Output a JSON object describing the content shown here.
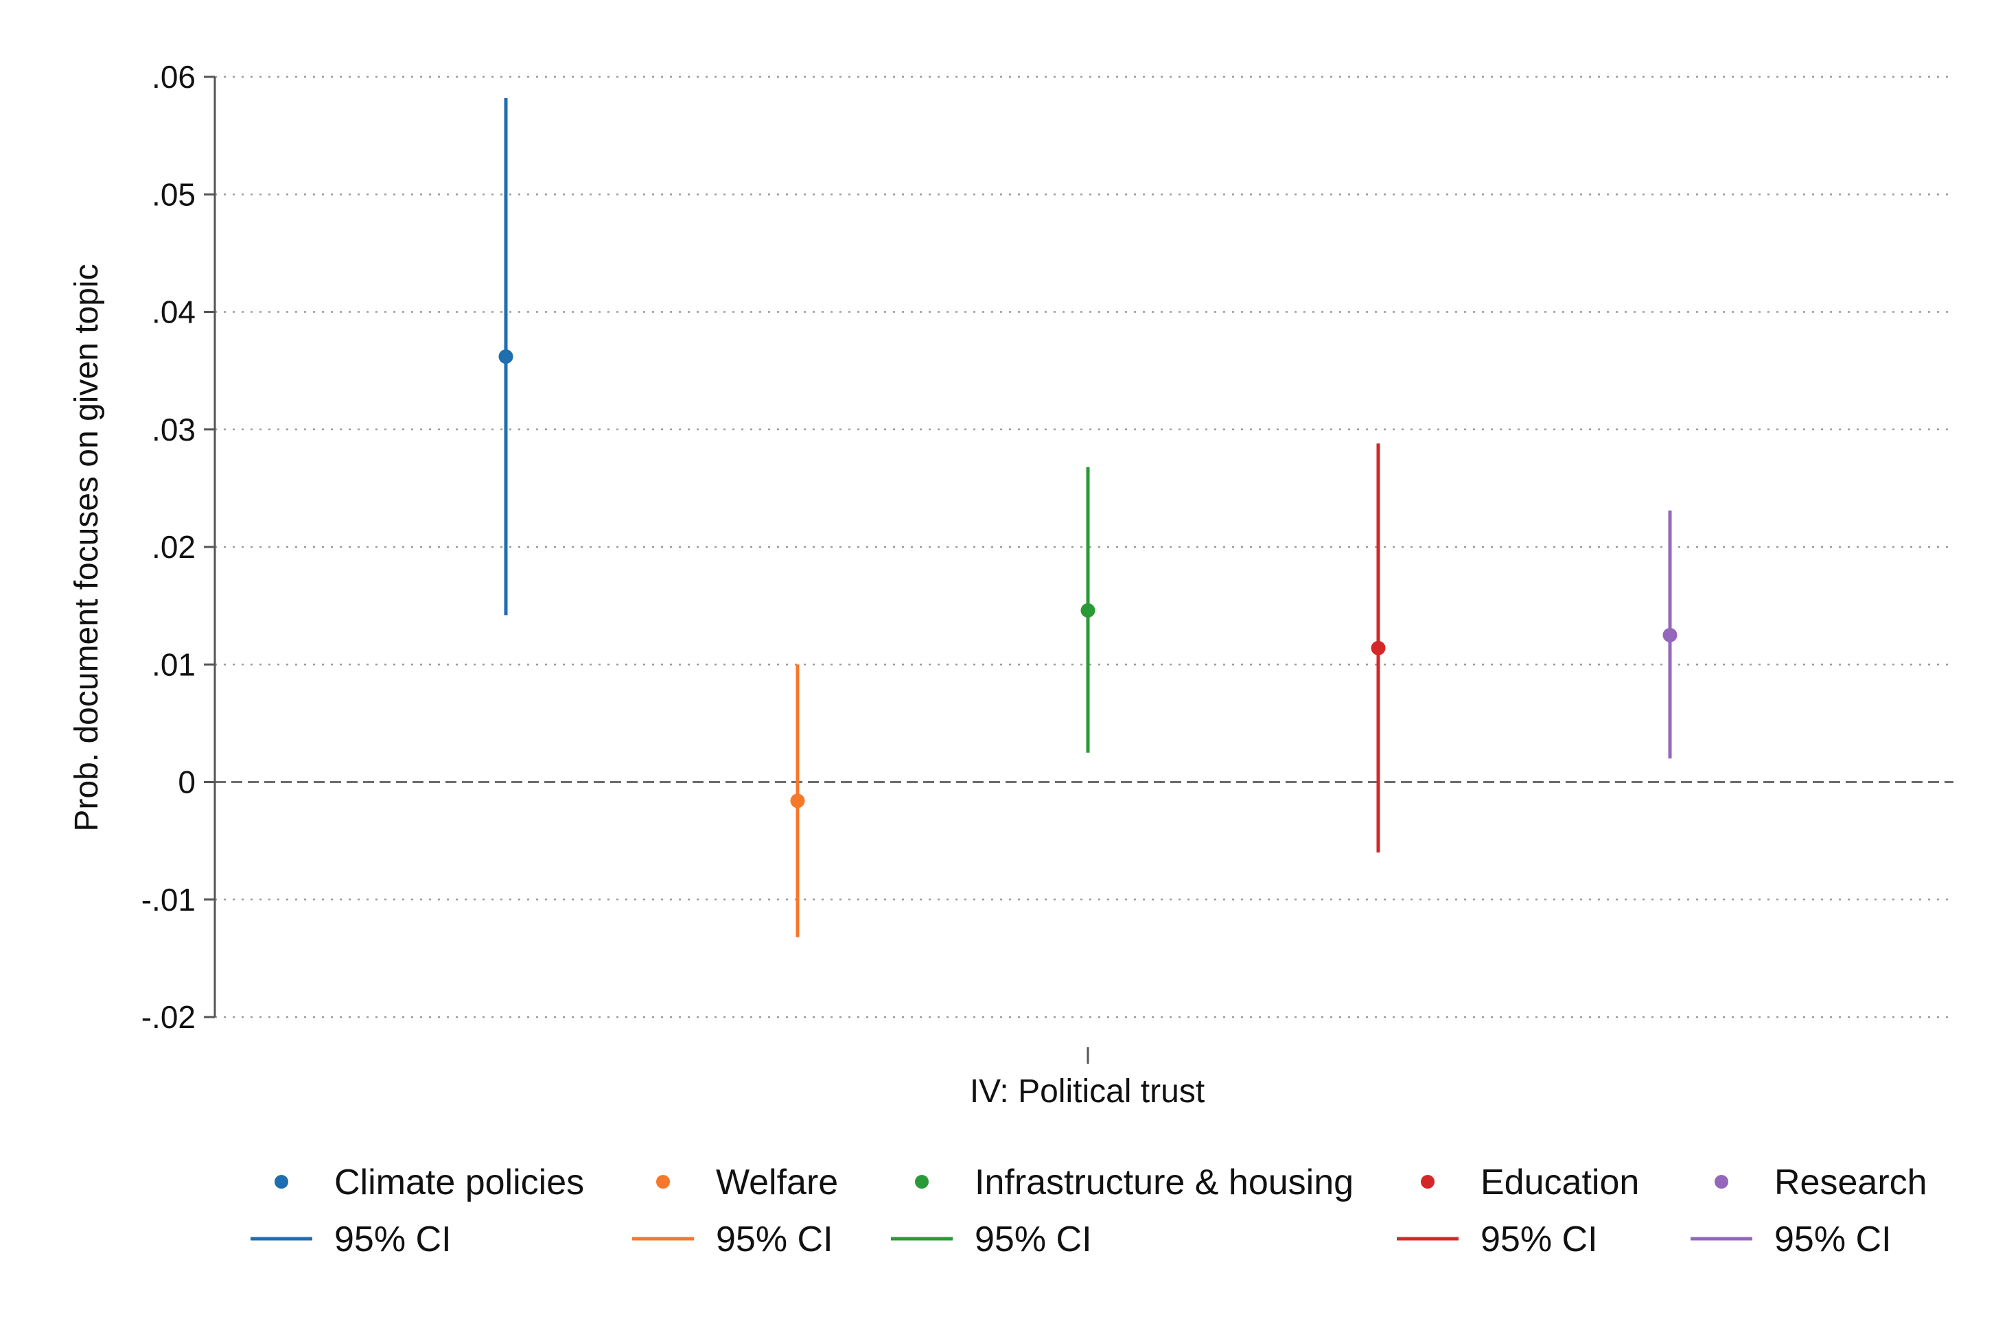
{
  "chart_data": {
    "type": "scatter",
    "title": "",
    "xlabel": "IV: Political trust",
    "ylabel": "Prob. document focuses on given topic",
    "ylim": [
      -0.02,
      0.06
    ],
    "yticks": [
      {
        "value": 0.06,
        "label": ".06"
      },
      {
        "value": 0.05,
        "label": ".05"
      },
      {
        "value": 0.04,
        "label": ".04"
      },
      {
        "value": 0.03,
        "label": ".03"
      },
      {
        "value": 0.02,
        "label": ".02"
      },
      {
        "value": 0.01,
        "label": ".01"
      },
      {
        "value": 0.0,
        "label": "0"
      },
      {
        "value": -0.01,
        "label": "-.01"
      },
      {
        "value": -0.02,
        "label": "-.02"
      }
    ],
    "grid": "horizontal-dotted",
    "reference_line": 0,
    "legend_position": "bottom",
    "ci_label": "95% CI",
    "series": [
      {
        "name": "Climate policies",
        "estimate": 0.0362,
        "ci_low": 0.0142,
        "ci_high": 0.0582,
        "color": "#1f6eb0"
      },
      {
        "name": "Welfare",
        "estimate": -0.0016,
        "ci_low": -0.0132,
        "ci_high": 0.01,
        "color": "#f7782a"
      },
      {
        "name": "Infrastructure & housing",
        "estimate": 0.0146,
        "ci_low": 0.0025,
        "ci_high": 0.0268,
        "color": "#2a9a36"
      },
      {
        "name": "Education",
        "estimate": 0.0114,
        "ci_low": -0.006,
        "ci_high": 0.0288,
        "color": "#d62728"
      },
      {
        "name": "Research",
        "estimate": 0.0125,
        "ci_low": 0.002,
        "ci_high": 0.0231,
        "color": "#9467bd"
      }
    ]
  }
}
